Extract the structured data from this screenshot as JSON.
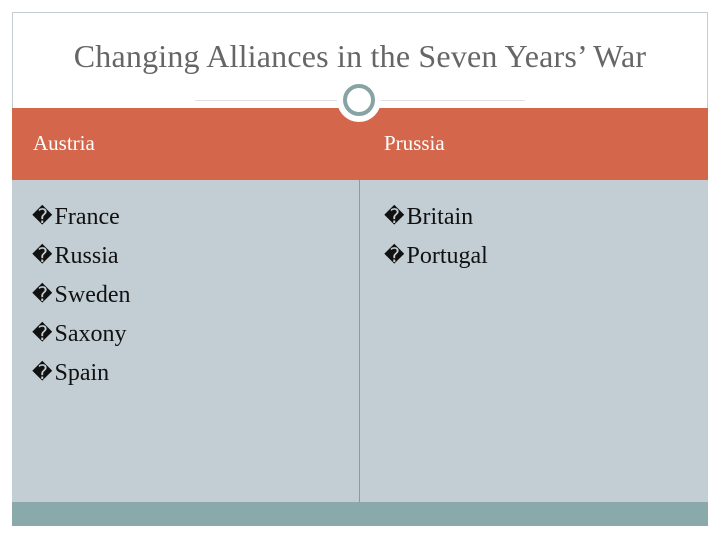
{
  "slide": {
    "title": "Changing Alliances in the Seven Years’ War"
  },
  "table": {
    "headers": [
      "Austria",
      "Prussia"
    ],
    "columns": [
      {
        "bullet": "�",
        "items": [
          "France",
          "Russia",
          "Sweden",
          "Saxony",
          "Spain"
        ]
      },
      {
        "bullet": "�",
        "items": [
          "Britain",
          "Portugal"
        ]
      }
    ]
  },
  "colors": {
    "header_band": "#d4664b",
    "body_band": "#c3ced4",
    "footer_band": "#8aa9aa",
    "title_text": "#666666",
    "ring_accent": "#87a3a4"
  },
  "icons": {
    "title_ornament": "circle-ring-icon"
  }
}
